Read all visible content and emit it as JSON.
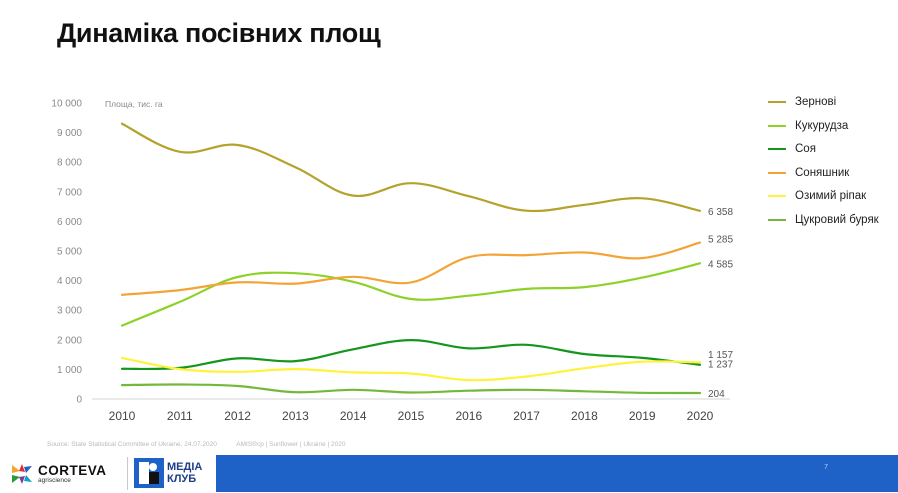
{
  "title": "Динаміка посівних площ",
  "chart_data": {
    "type": "line",
    "ylabel": "Площа, тис. га",
    "ylim": [
      0,
      10000
    ],
    "y_ticks": [
      "0",
      "1 000",
      "2 000",
      "3 000",
      "4 000",
      "5 000",
      "6 000",
      "7 000",
      "8 000",
      "9 000",
      "10 000"
    ],
    "y_tick_values": [
      0,
      1000,
      2000,
      3000,
      4000,
      5000,
      6000,
      7000,
      8000,
      9000,
      10000
    ],
    "categories": [
      "2010",
      "2011",
      "2012",
      "2013",
      "2014",
      "2015",
      "2016",
      "2017",
      "2018",
      "2019",
      "2020"
    ],
    "grid": false,
    "legend_position": "right",
    "series": [
      {
        "name": "Зернові",
        "color": "#b5a22c",
        "values": [
          9300,
          8350,
          8580,
          7830,
          6870,
          7290,
          6850,
          6360,
          6560,
          6780,
          6358
        ],
        "end_label": "6 358"
      },
      {
        "name": "Кукурудза",
        "color": "#8cd228",
        "values": [
          2480,
          3280,
          4120,
          4250,
          3960,
          3380,
          3490,
          3720,
          3780,
          4100,
          4585
        ],
        "end_label": "4 585"
      },
      {
        "name": "Соя",
        "color": "#14961e",
        "values": [
          1020,
          1050,
          1370,
          1280,
          1680,
          1990,
          1710,
          1830,
          1520,
          1390,
          1157
        ],
        "end_label": "1 157"
      },
      {
        "name": "Соняшник",
        "color": "#f2a536",
        "values": [
          3520,
          3680,
          3940,
          3900,
          4130,
          3940,
          4790,
          4860,
          4950,
          4760,
          5285
        ],
        "end_label": "5 285"
      },
      {
        "name": "Озимий ріпак",
        "color": "#fff23a",
        "values": [
          1390,
          1010,
          920,
          1010,
          900,
          860,
          640,
          760,
          1040,
          1260,
          1237
        ],
        "end_label": "1 237"
      },
      {
        "name": "Цукровий буряк",
        "color": "#74b83a",
        "values": [
          470,
          490,
          440,
          230,
          310,
          220,
          280,
          310,
          260,
          210,
          204
        ],
        "end_label": "204"
      }
    ]
  },
  "legend": [
    {
      "label": "Зернові",
      "color": "#b5a22c"
    },
    {
      "label": "Кукурудза",
      "color": "#8cd228"
    },
    {
      "label": "Соя",
      "color": "#14961e"
    },
    {
      "label": "Соняшник",
      "color": "#f2a536"
    },
    {
      "label": "Озимий ріпак",
      "color": "#fff23a"
    },
    {
      "label": "Цукровий буряк",
      "color": "#74b83a"
    }
  ],
  "source": {
    "part1": "Source: State Statistical Committee of Ukraine, 24.07.2020",
    "part2": "AMIS®cp | Sunflower | Ukraine | 2020"
  },
  "footer": {
    "page_number": "7",
    "corteva_name": "CORTEVA",
    "corteva_sub": "agriscience",
    "media_line1": "МЕДІА",
    "media_line2": "КЛУБ",
    "blue": "#1e62c8"
  }
}
